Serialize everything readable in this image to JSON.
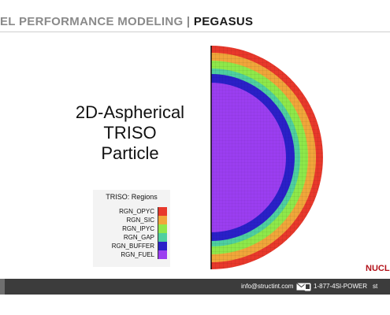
{
  "header": {
    "title_prefix": "EL PERFORMANCE MODELING | ",
    "title_accent": "PEGASUS"
  },
  "slide": {
    "title_lines": [
      "2D-Aspherical",
      "TRISO",
      "Particle"
    ]
  },
  "legend": {
    "title": "TRISO: Regions",
    "items": [
      {
        "label": "RGN_OPYC",
        "color": "#e8382b"
      },
      {
        "label": "RGN_SIC",
        "color": "#f0a63a"
      },
      {
        "label": "RGN_IPYC",
        "color": "#8ee84a"
      },
      {
        "label": "RGN_GAP",
        "color": "#4ecfa0"
      },
      {
        "label": "RGN_BUFFER",
        "color": "#2a20c8"
      },
      {
        "label": "RGN_FUEL",
        "color": "#9b3ef0"
      }
    ]
  },
  "brand": {
    "text": "NUCLEA"
  },
  "footer": {
    "email": "info@structint.com",
    "phone": "1-877-4SI-POWER",
    "extra": "st"
  },
  "icons": {
    "mail": "mail-icon",
    "phone": "phone-icon"
  }
}
